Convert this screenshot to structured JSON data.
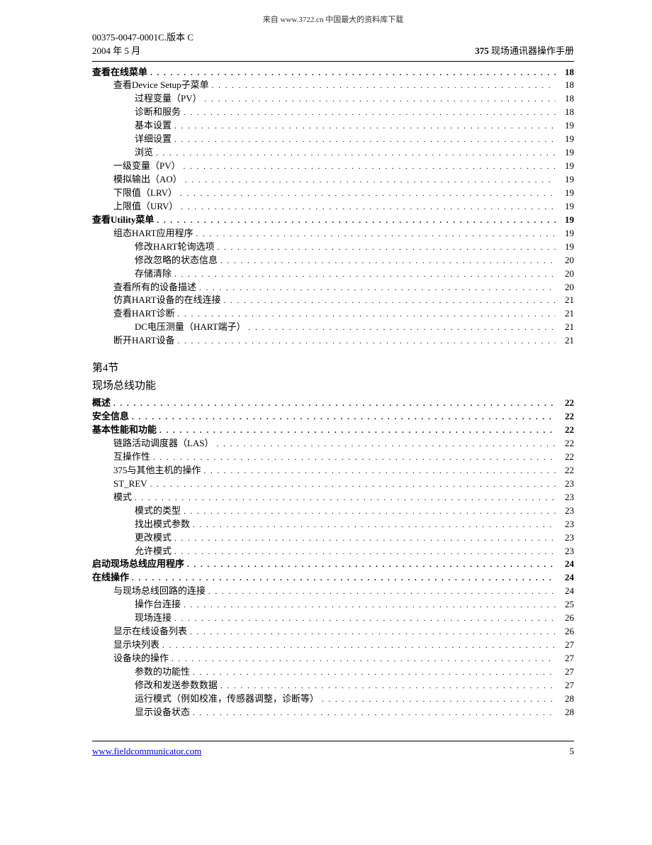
{
  "source_line": "来自 www.3722.cn 中国最大的资料库下载",
  "header": {
    "doc_id": "00375-0047-0001C.版本 C",
    "date": "2004 年 5 月",
    "title_prefix": "375",
    "title_rest": " 现场通讯器操作手册"
  },
  "toc": [
    {
      "label": "查看在线菜单",
      "page": "18",
      "indent": 0,
      "bold": true
    },
    {
      "label": "查看Device Setup子菜单",
      "page": "18",
      "indent": 1,
      "bold": false
    },
    {
      "label": "过程变量（PV）",
      "page": "18",
      "indent": 2,
      "bold": false
    },
    {
      "label": "诊断和服务",
      "page": "18",
      "indent": 2,
      "bold": false
    },
    {
      "label": "基本设置",
      "page": "19",
      "indent": 2,
      "bold": false
    },
    {
      "label": "详细设置",
      "page": "19",
      "indent": 2,
      "bold": false
    },
    {
      "label": "浏览",
      "page": "19",
      "indent": 2,
      "bold": false
    },
    {
      "label": "一级变量（PV）",
      "page": "19",
      "indent": 1,
      "bold": false
    },
    {
      "label": "模拟输出（AO）",
      "page": "19",
      "indent": 1,
      "bold": false
    },
    {
      "label": "下限值（LRV）",
      "page": "19",
      "indent": 1,
      "bold": false
    },
    {
      "label": "上限值（URV）",
      "page": "19",
      "indent": 1,
      "bold": false
    },
    {
      "label": "查看Utility菜单",
      "page": "19",
      "indent": 0,
      "bold": true
    },
    {
      "label": "组态HART应用程序",
      "page": "19",
      "indent": 1,
      "bold": false
    },
    {
      "label": "修改HART轮询选项",
      "page": "19",
      "indent": 2,
      "bold": false
    },
    {
      "label": "修改忽略的状态信息",
      "page": "20",
      "indent": 2,
      "bold": false
    },
    {
      "label": "存储清除",
      "page": "20",
      "indent": 2,
      "bold": false
    },
    {
      "label": "查看所有的设备描述",
      "page": "20",
      "indent": 1,
      "bold": false
    },
    {
      "label": "仿真HART设备的在线连接",
      "page": "21",
      "indent": 1,
      "bold": false
    },
    {
      "label": "查看HART诊断",
      "page": "21",
      "indent": 1,
      "bold": false
    },
    {
      "label": "DC电压测量（HART端子）",
      "page": "21",
      "indent": 2,
      "bold": false
    },
    {
      "label": "断开HART设备",
      "page": "21",
      "indent": 1,
      "bold": false
    }
  ],
  "section4": {
    "heading": "第4节",
    "subtitle": "现场总线功能"
  },
  "toc2": [
    {
      "label": "概述",
      "page": "22",
      "indent": 0,
      "bold": true
    },
    {
      "label": "安全信息",
      "page": "22",
      "indent": 0,
      "bold": true
    },
    {
      "label": "基本性能和功能",
      "page": "22",
      "indent": 0,
      "bold": true
    },
    {
      "label": "链路活动调度器（LAS）",
      "page": "22",
      "indent": 1,
      "bold": false
    },
    {
      "label": "互操作性",
      "page": "22",
      "indent": 1,
      "bold": false
    },
    {
      "label": "375与其他主机的操作",
      "page": "22",
      "indent": 1,
      "bold": false
    },
    {
      "label": "ST_REV",
      "page": "23",
      "indent": 1,
      "bold": false
    },
    {
      "label": "模式",
      "page": "23",
      "indent": 1,
      "bold": false
    },
    {
      "label": "模式的类型",
      "page": "23",
      "indent": 2,
      "bold": false
    },
    {
      "label": "找出模式参数",
      "page": "23",
      "indent": 2,
      "bold": false
    },
    {
      "label": "更改模式",
      "page": "23",
      "indent": 2,
      "bold": false
    },
    {
      "label": "允许模式",
      "page": "23",
      "indent": 2,
      "bold": false
    },
    {
      "label": "启动现场总线应用程序",
      "page": "24",
      "indent": 0,
      "bold": true
    },
    {
      "label": "在线操作",
      "page": "24",
      "indent": 0,
      "bold": true
    },
    {
      "label": "与现场总线回路的连接",
      "page": "24",
      "indent": 1,
      "bold": false
    },
    {
      "label": "操作台连接",
      "page": "25",
      "indent": 2,
      "bold": false
    },
    {
      "label": "现场连接",
      "page": "26",
      "indent": 2,
      "bold": false
    },
    {
      "label": "显示在线设备列表",
      "page": "26",
      "indent": 1,
      "bold": false
    },
    {
      "label": "显示块列表",
      "page": "27",
      "indent": 1,
      "bold": false
    },
    {
      "label": "设备块的操作",
      "page": "27",
      "indent": 1,
      "bold": false
    },
    {
      "label": "参数的功能性",
      "page": "27",
      "indent": 2,
      "bold": false
    },
    {
      "label": "修改和发送参数数据",
      "page": "27",
      "indent": 2,
      "bold": false
    },
    {
      "label": "运行模式（例如校准，传感器调整，诊断等）",
      "page": "28",
      "indent": 2,
      "bold": false
    },
    {
      "label": "显示设备状态",
      "page": "28",
      "indent": 2,
      "bold": false
    }
  ],
  "footer": {
    "link": "www.fieldcommunicator.com",
    "page_num": "5"
  }
}
